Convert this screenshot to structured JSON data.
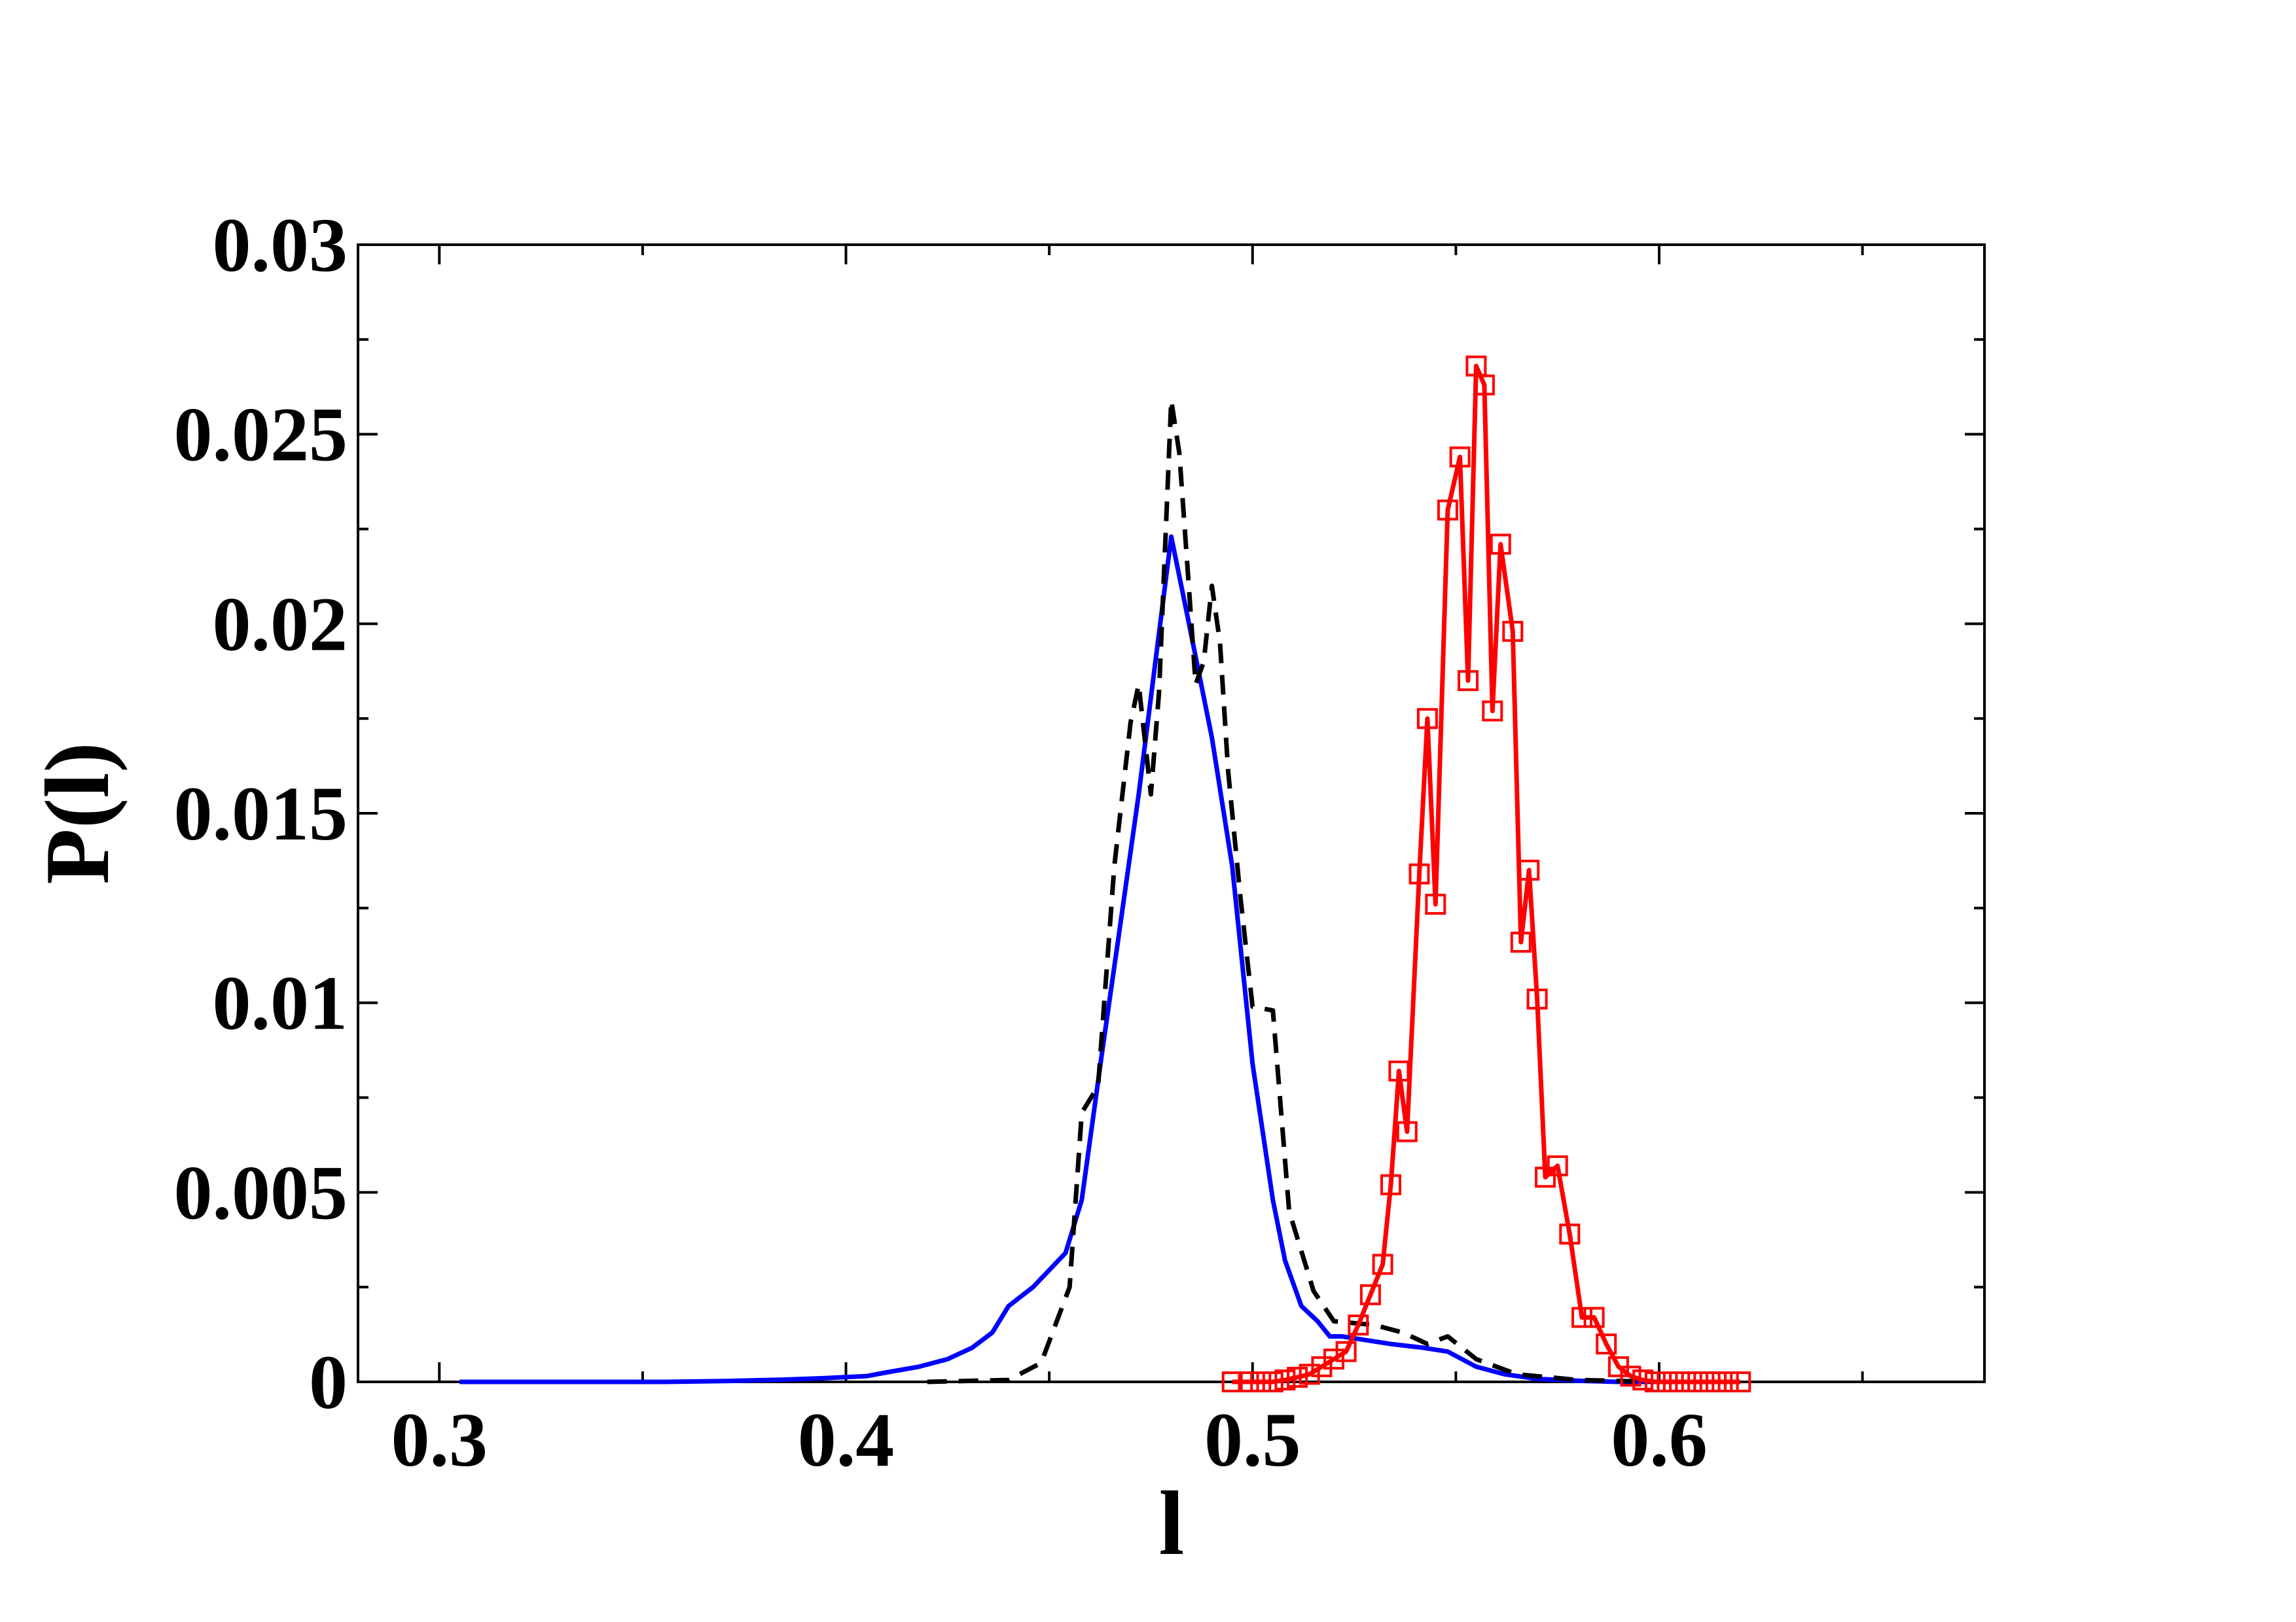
{
  "chart_data": {
    "type": "line",
    "title": "",
    "xlabel": "l",
    "ylabel": "P(l)",
    "xlim": [
      0.28,
      0.68
    ],
    "ylim": [
      0,
      0.03
    ],
    "x_ticks": [
      0.3,
      0.4,
      0.5,
      0.6
    ],
    "x_tick_labels": [
      "0.3",
      "0.4",
      "0.5",
      "0.6"
    ],
    "y_ticks": [
      0,
      0.005,
      0.01,
      0.015,
      0.02,
      0.025,
      0.03
    ],
    "y_tick_labels": [
      "0",
      "0.005",
      "0.01",
      "0.015",
      "0.02",
      "0.025",
      "0.03"
    ],
    "grid": false,
    "legend": "none",
    "series": [
      {
        "color": "#0000ff",
        "style": "solid",
        "marker": "none",
        "x": [
          0.305,
          0.33,
          0.355,
          0.37,
          0.385,
          0.395,
          0.405,
          0.41,
          0.418,
          0.425,
          0.431,
          0.436,
          0.44,
          0.446,
          0.454,
          0.458,
          0.463,
          0.467,
          0.472,
          0.476,
          0.48,
          0.484,
          0.49,
          0.495,
          0.5,
          0.505,
          0.508,
          0.512,
          0.516,
          0.519,
          0.522,
          0.528,
          0.534,
          0.542,
          0.548,
          0.555,
          0.562,
          0.57,
          0.58,
          0.59,
          0.6,
          0.61
        ],
        "y": [
          0,
          0,
          0,
          2e-05,
          6e-05,
          0.0001,
          0.00015,
          0.00025,
          0.0004,
          0.0006,
          0.0009,
          0.0013,
          0.002,
          0.0025,
          0.0034,
          0.0048,
          0.0087,
          0.0117,
          0.0155,
          0.0189,
          0.0223,
          0.0202,
          0.017,
          0.0136,
          0.0084,
          0.0048,
          0.0032,
          0.002,
          0.0016,
          0.0012,
          0.0012,
          0.0011,
          0.001,
          0.0009,
          0.0008,
          0.0004,
          0.0002,
          8e-05,
          3e-05,
          0,
          0,
          0
        ]
      },
      {
        "color": "#000000",
        "style": "dashed",
        "marker": "none",
        "x": [
          0.42,
          0.44,
          0.448,
          0.455,
          0.458,
          0.462,
          0.466,
          0.47,
          0.472,
          0.475,
          0.477,
          0.48,
          0.482,
          0.484,
          0.486,
          0.488,
          0.49,
          0.492,
          0.494,
          0.497,
          0.5,
          0.505,
          0.509,
          0.515,
          0.52,
          0.53,
          0.537,
          0.543,
          0.548,
          0.555,
          0.565,
          0.58,
          0.6
        ],
        "y": [
          0,
          5e-05,
          0.0005,
          0.0025,
          0.0071,
          0.0078,
          0.0136,
          0.0174,
          0.0184,
          0.0155,
          0.0182,
          0.0259,
          0.0245,
          0.0215,
          0.0184,
          0.019,
          0.021,
          0.0195,
          0.0161,
          0.0128,
          0.0099,
          0.0098,
          0.0045,
          0.0024,
          0.0016,
          0.0015,
          0.0013,
          0.001,
          0.0012,
          0.0006,
          0.0002,
          5e-05,
          0
        ]
      },
      {
        "color": "#ff0000",
        "style": "solid",
        "marker": "square",
        "x": [
          0.495,
          0.499,
          0.502,
          0.505,
          0.508,
          0.511,
          0.514,
          0.517,
          0.52,
          0.523,
          0.526,
          0.529,
          0.532,
          0.534,
          0.536,
          0.538,
          0.541,
          0.543,
          0.545,
          0.548,
          0.551,
          0.553,
          0.555,
          0.557,
          0.559,
          0.561,
          0.564,
          0.566,
          0.568,
          0.57,
          0.572,
          0.575,
          0.578,
          0.581,
          0.584,
          0.587,
          0.59,
          0.593,
          0.596,
          0.599,
          0.602,
          0.605,
          0.608,
          0.611,
          0.614,
          0.617,
          0.62
        ],
        "y": [
          0,
          0,
          0,
          0,
          5e-05,
          0.00012,
          0.0002,
          0.0004,
          0.0006,
          0.0008,
          0.0015,
          0.0023,
          0.0031,
          0.0052,
          0.0082,
          0.0066,
          0.0134,
          0.0175,
          0.0126,
          0.023,
          0.0244,
          0.0185,
          0.0268,
          0.0263,
          0.0177,
          0.0221,
          0.0198,
          0.0116,
          0.0135,
          0.0101,
          0.0054,
          0.0057,
          0.0039,
          0.0017,
          0.0017,
          0.001,
          0.0004,
          0.00015,
          5e-05,
          0,
          0,
          0,
          0,
          0,
          0,
          0,
          0
        ]
      }
    ]
  }
}
